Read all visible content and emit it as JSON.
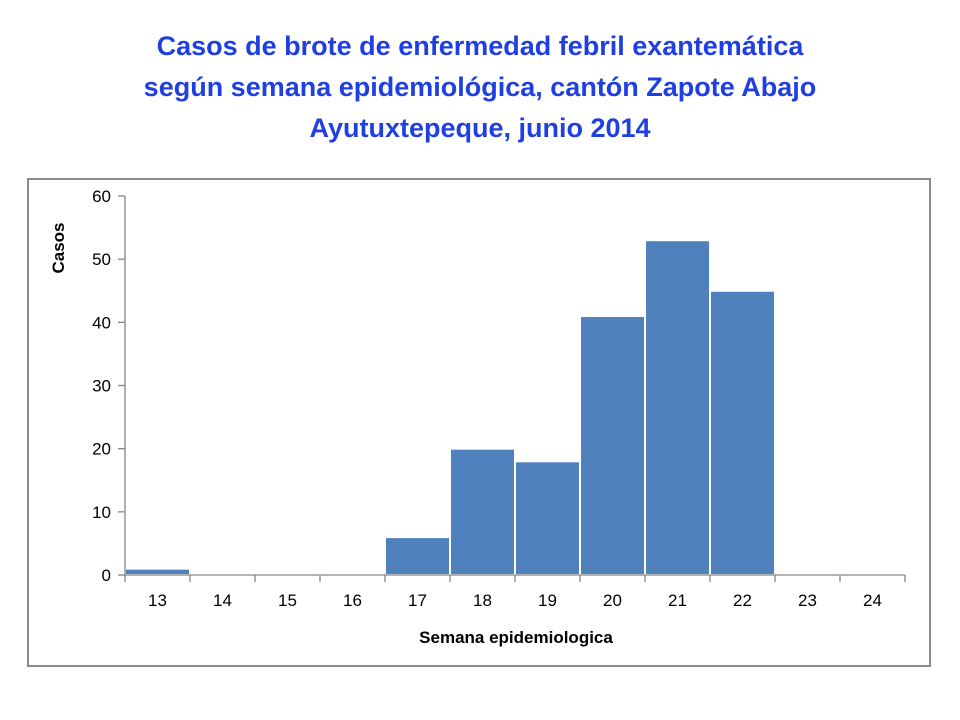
{
  "title": {
    "line1": "Casos de brote de enfermedad febril exantemática",
    "line2": "según semana epidemiológica, cantón Zapote Abajo",
    "line3": "Ayutuxtepeque, junio 2014"
  },
  "colors": {
    "title": "#1f3fe0",
    "bar": "#4f81bd",
    "bar_edge": "#ffffff",
    "axis": "#868686",
    "frame": "#8c8c8c"
  },
  "chart_data": {
    "type": "bar",
    "xlabel": "Semana epidemiologica",
    "ylabel": "Casos",
    "categories": [
      "13",
      "14",
      "15",
      "16",
      "17",
      "18",
      "19",
      "20",
      "21",
      "22",
      "23",
      "24"
    ],
    "values": [
      1,
      0,
      0,
      0,
      6,
      20,
      18,
      41,
      53,
      45,
      0,
      0
    ],
    "ylim": [
      0,
      60
    ],
    "yticks": [
      0,
      10,
      20,
      30,
      40,
      50,
      60
    ],
    "grid": false,
    "legend": "none"
  }
}
